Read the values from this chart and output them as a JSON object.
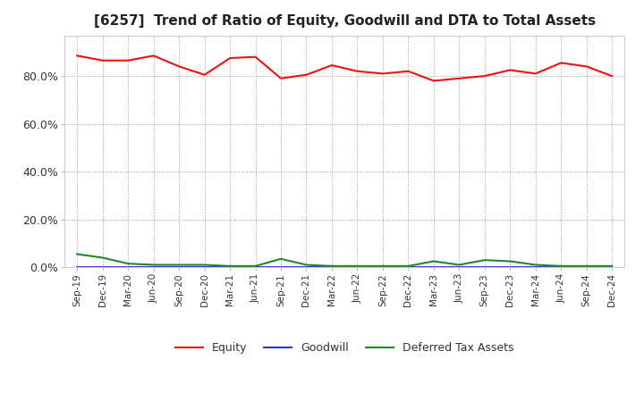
{
  "title": "[6257]  Trend of Ratio of Equity, Goodwill and DTA to Total Assets",
  "labels": [
    "Sep-19",
    "Dec-19",
    "Mar-20",
    "Jun-20",
    "Sep-20",
    "Dec-20",
    "Mar-21",
    "Jun-21",
    "Sep-21",
    "Dec-21",
    "Mar-22",
    "Jun-22",
    "Sep-22",
    "Dec-22",
    "Mar-23",
    "Jun-23",
    "Sep-23",
    "Dec-23",
    "Mar-24",
    "Jun-24",
    "Sep-24",
    "Dec-24"
  ],
  "equity": [
    88.5,
    86.5,
    86.5,
    88.5,
    84.0,
    80.5,
    87.5,
    88.0,
    79.0,
    80.5,
    84.5,
    82.0,
    81.0,
    82.0,
    78.0,
    79.0,
    80.0,
    82.5,
    81.0,
    85.5,
    84.0,
    80.0
  ],
  "goodwill": [
    0.0,
    0.0,
    0.0,
    0.0,
    0.0,
    0.0,
    0.0,
    0.0,
    0.0,
    0.0,
    0.0,
    0.0,
    0.0,
    0.0,
    0.0,
    0.0,
    0.0,
    0.0,
    0.0,
    0.0,
    0.0,
    0.0
  ],
  "dta": [
    5.5,
    4.0,
    1.5,
    1.0,
    1.0,
    1.0,
    0.5,
    0.5,
    3.5,
    1.0,
    0.5,
    0.5,
    0.5,
    0.5,
    2.5,
    1.0,
    3.0,
    2.5,
    1.0,
    0.5,
    0.5,
    0.5
  ],
  "equity_color": "#ee1111",
  "goodwill_color": "#3333cc",
  "dta_color": "#228822",
  "background_color": "#ffffff",
  "plot_bg_color": "#ffffff",
  "grid_color": "#999999",
  "ylim": [
    0,
    97
  ],
  "yticks": [
    0,
    20,
    40,
    60,
    80
  ],
  "ytick_labels": [
    "0.0%",
    "20.0%",
    "40.0%",
    "60.0%",
    "80.0%"
  ]
}
